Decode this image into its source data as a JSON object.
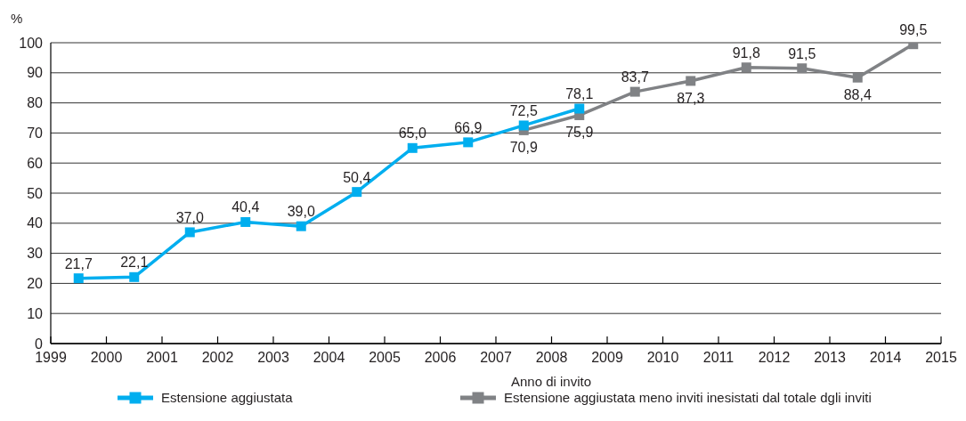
{
  "chart_data": {
    "type": "line",
    "ylabel": "%",
    "xlabel": "Anno di invito",
    "xlim": [
      1999,
      2015
    ],
    "xticks": [
      1999,
      2000,
      2001,
      2002,
      2003,
      2004,
      2005,
      2006,
      2007,
      2008,
      2009,
      2010,
      2011,
      2012,
      2013,
      2014,
      2015
    ],
    "ylim": [
      0,
      100
    ],
    "yticks": [
      0,
      10,
      20,
      30,
      40,
      50,
      60,
      70,
      80,
      90,
      100
    ],
    "grid": "y",
    "legend": "bottom",
    "marker": "square",
    "line_style": "solid",
    "series": [
      {
        "name": "Estensione aggiustata",
        "color": "#00aeef",
        "x": [
          1999.5,
          2000.5,
          2001.5,
          2002.5,
          2003.5,
          2004.5,
          2005.5,
          2006.5,
          2007.5,
          2008.5
        ],
        "values": [
          21.7,
          22.1,
          37.0,
          40.4,
          39.0,
          50.4,
          65.0,
          66.9,
          72.5,
          78.1
        ],
        "value_labels": [
          "21,7",
          "22,1",
          "37,0",
          "40,4",
          "39,0",
          "50,4",
          "65,0",
          "66,9",
          "72,5",
          "78,1"
        ]
      },
      {
        "name": "Estensione aggiustata meno inviti inesistati dal totale dgli inviti",
        "color": "#808285",
        "x": [
          2007.5,
          2008.5,
          2009.5,
          2010.5,
          2011.5,
          2012.5,
          2013.5,
          2014.5
        ],
        "values": [
          70.9,
          75.9,
          83.7,
          87.3,
          91.8,
          91.5,
          88.4,
          99.5
        ],
        "value_labels": [
          "70,9",
          "75,9",
          "83,7",
          "87,3",
          "91,8",
          "91,5",
          "88,4",
          "99,5"
        ]
      }
    ]
  }
}
